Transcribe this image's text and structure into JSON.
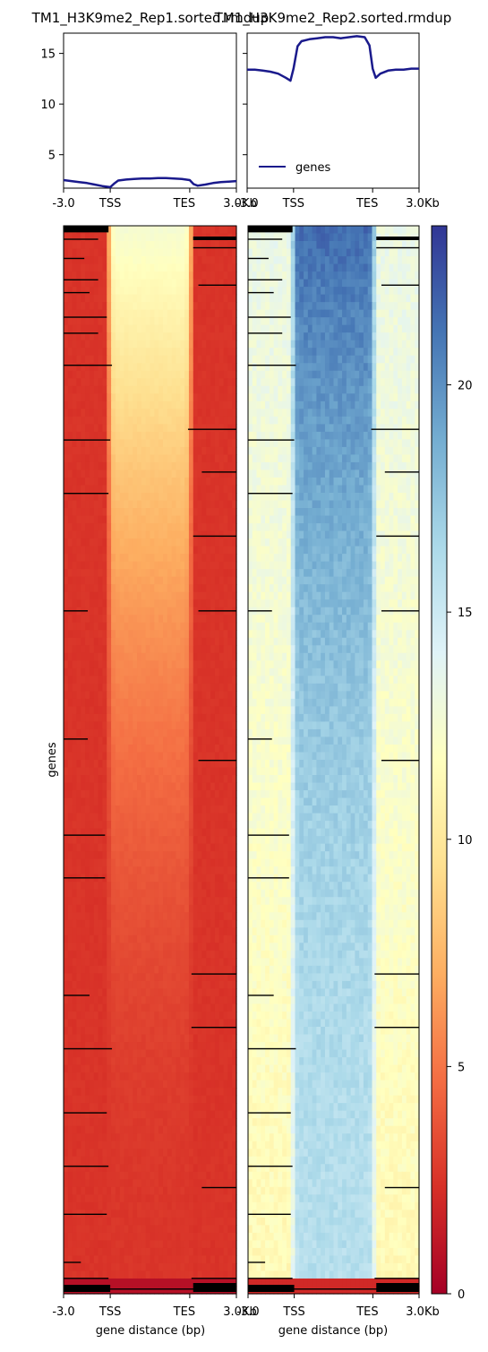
{
  "chart_data": [
    {
      "type": "line",
      "title": "TM1_H3K9me2_Rep1.sorted.rmdup",
      "xticklabels": [
        "-3.0",
        "TSS",
        "TES",
        "3.0Kb"
      ],
      "ylim": [
        1.7,
        17.0
      ],
      "yticks": [
        5,
        10,
        15
      ],
      "series": [
        {
          "color": "#1a1a8c",
          "x": [
            -3.0,
            -2.5,
            -2.0,
            -1.5,
            -1.0,
            -0.5,
            0.0,
            0.25,
            0.5,
            1.0,
            1.5,
            2.0,
            2.5,
            3.0,
            3.5,
            4.0,
            4.5,
            5.0,
            5.25,
            5.5,
            6.0,
            6.5,
            7.0,
            7.5,
            8.0
          ],
          "y": [
            2.5,
            2.4,
            2.3,
            2.2,
            2.05,
            1.9,
            1.8,
            2.15,
            2.45,
            2.55,
            2.6,
            2.65,
            2.65,
            2.7,
            2.7,
            2.65,
            2.6,
            2.5,
            2.1,
            1.95,
            2.05,
            2.2,
            2.3,
            2.35,
            2.4
          ]
        }
      ]
    },
    {
      "type": "line",
      "title": "TM1_H3K9me2_Rep2.sorted.rmdup",
      "xticklabels": [
        "-3.0",
        "TSS",
        "TES",
        "3.0Kb"
      ],
      "ylim": [
        1.7,
        17.0
      ],
      "yticks": [
        5,
        10,
        15
      ],
      "legend": {
        "label": "genes",
        "position": "lower-left"
      },
      "series": [
        {
          "name": "genes",
          "color": "#1a1a8c",
          "x": [
            -3.0,
            -2.5,
            -2.0,
            -1.5,
            -1.0,
            -0.5,
            -0.2,
            0.0,
            0.25,
            0.5,
            1.0,
            1.5,
            2.0,
            2.5,
            3.0,
            3.5,
            4.0,
            4.5,
            4.8,
            5.0,
            5.2,
            5.5,
            6.0,
            6.5,
            7.0,
            7.5,
            8.0
          ],
          "y": [
            13.4,
            13.4,
            13.3,
            13.2,
            13.0,
            12.6,
            12.3,
            13.5,
            15.7,
            16.2,
            16.4,
            16.5,
            16.6,
            16.6,
            16.5,
            16.6,
            16.7,
            16.6,
            15.8,
            13.5,
            12.6,
            13.0,
            13.3,
            13.4,
            13.4,
            13.5,
            13.5
          ]
        }
      ]
    },
    {
      "type": "heatmap",
      "ylabel": "genes",
      "xlabel": "gene distance (bp)",
      "xticklabels": [
        "-3.0",
        "TSS",
        "TES",
        "3.0Kb"
      ],
      "panels": [
        {
          "flank": 2.5,
          "body": 2.55,
          "topBody": 12.5
        },
        {
          "flank": 12.5,
          "body": 16.0,
          "topBody": 21.5
        }
      ],
      "colorbar": {
        "colormap": "RdYlBu",
        "range": [
          0,
          23.5
        ],
        "ticks": [
          0,
          5,
          10,
          15,
          20
        ]
      }
    }
  ]
}
